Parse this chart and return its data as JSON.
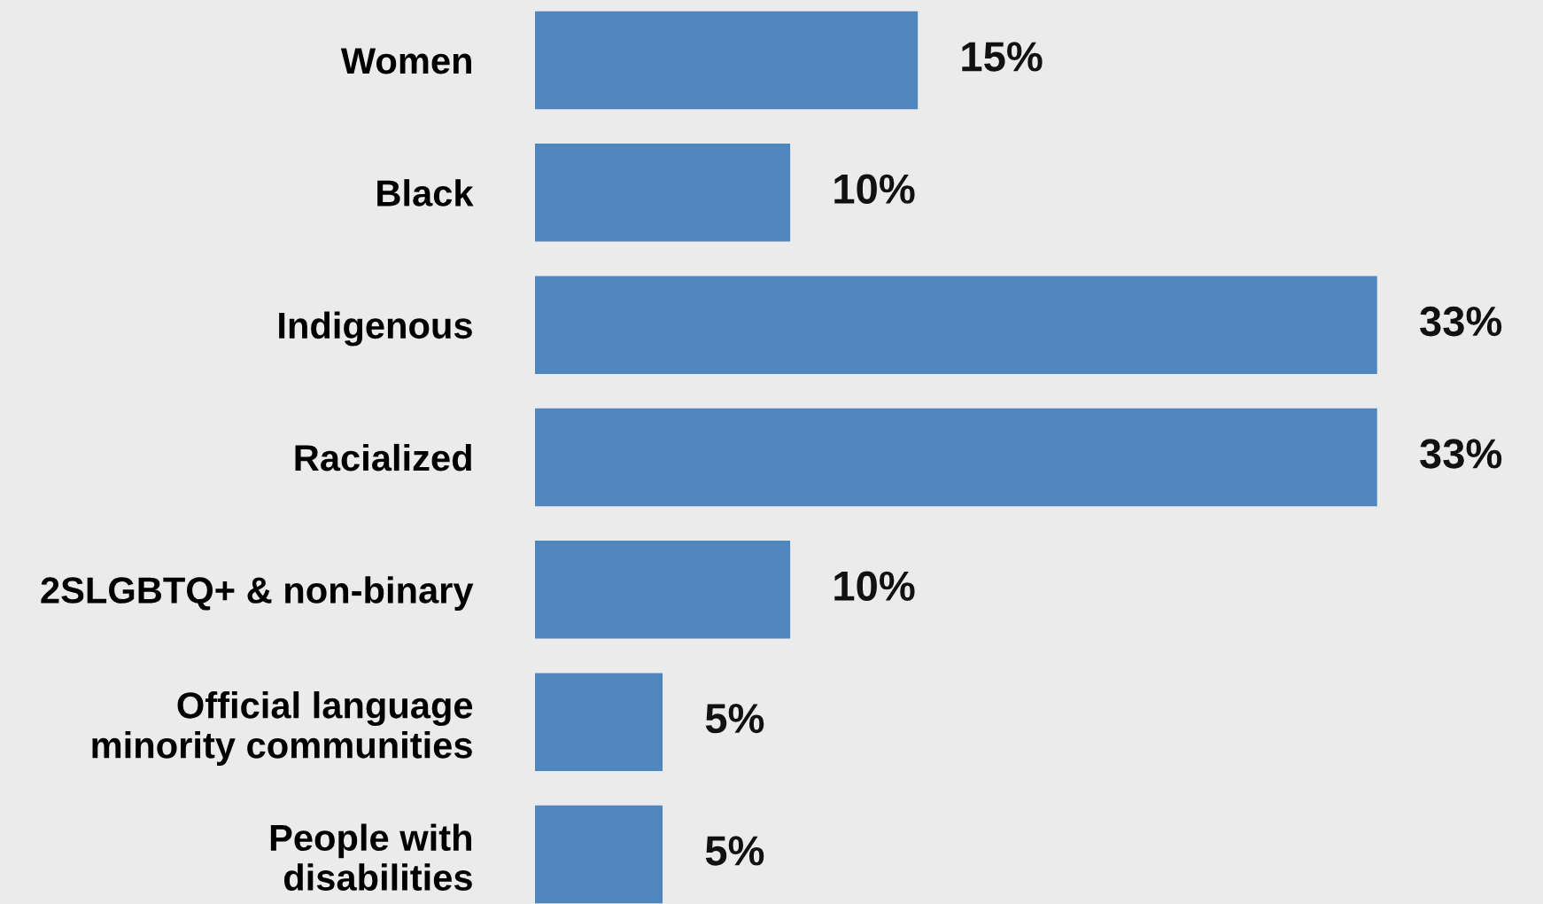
{
  "chart_data": {
    "type": "bar",
    "orientation": "horizontal",
    "categories": [
      "Women",
      "Black",
      "Indigenous",
      "Racialized",
      "2SLGBTQ+ & non-binary",
      "Official language\nminority communities",
      "People with\ndisabilities"
    ],
    "values": [
      15,
      10,
      33,
      33,
      10,
      5,
      5
    ],
    "value_labels": [
      "15%",
      "10%",
      "33%",
      "33%",
      "10%",
      "5%",
      "5%"
    ],
    "color": "#4f86bd",
    "grid": false,
    "legend": false,
    "tick_labels": "y"
  }
}
